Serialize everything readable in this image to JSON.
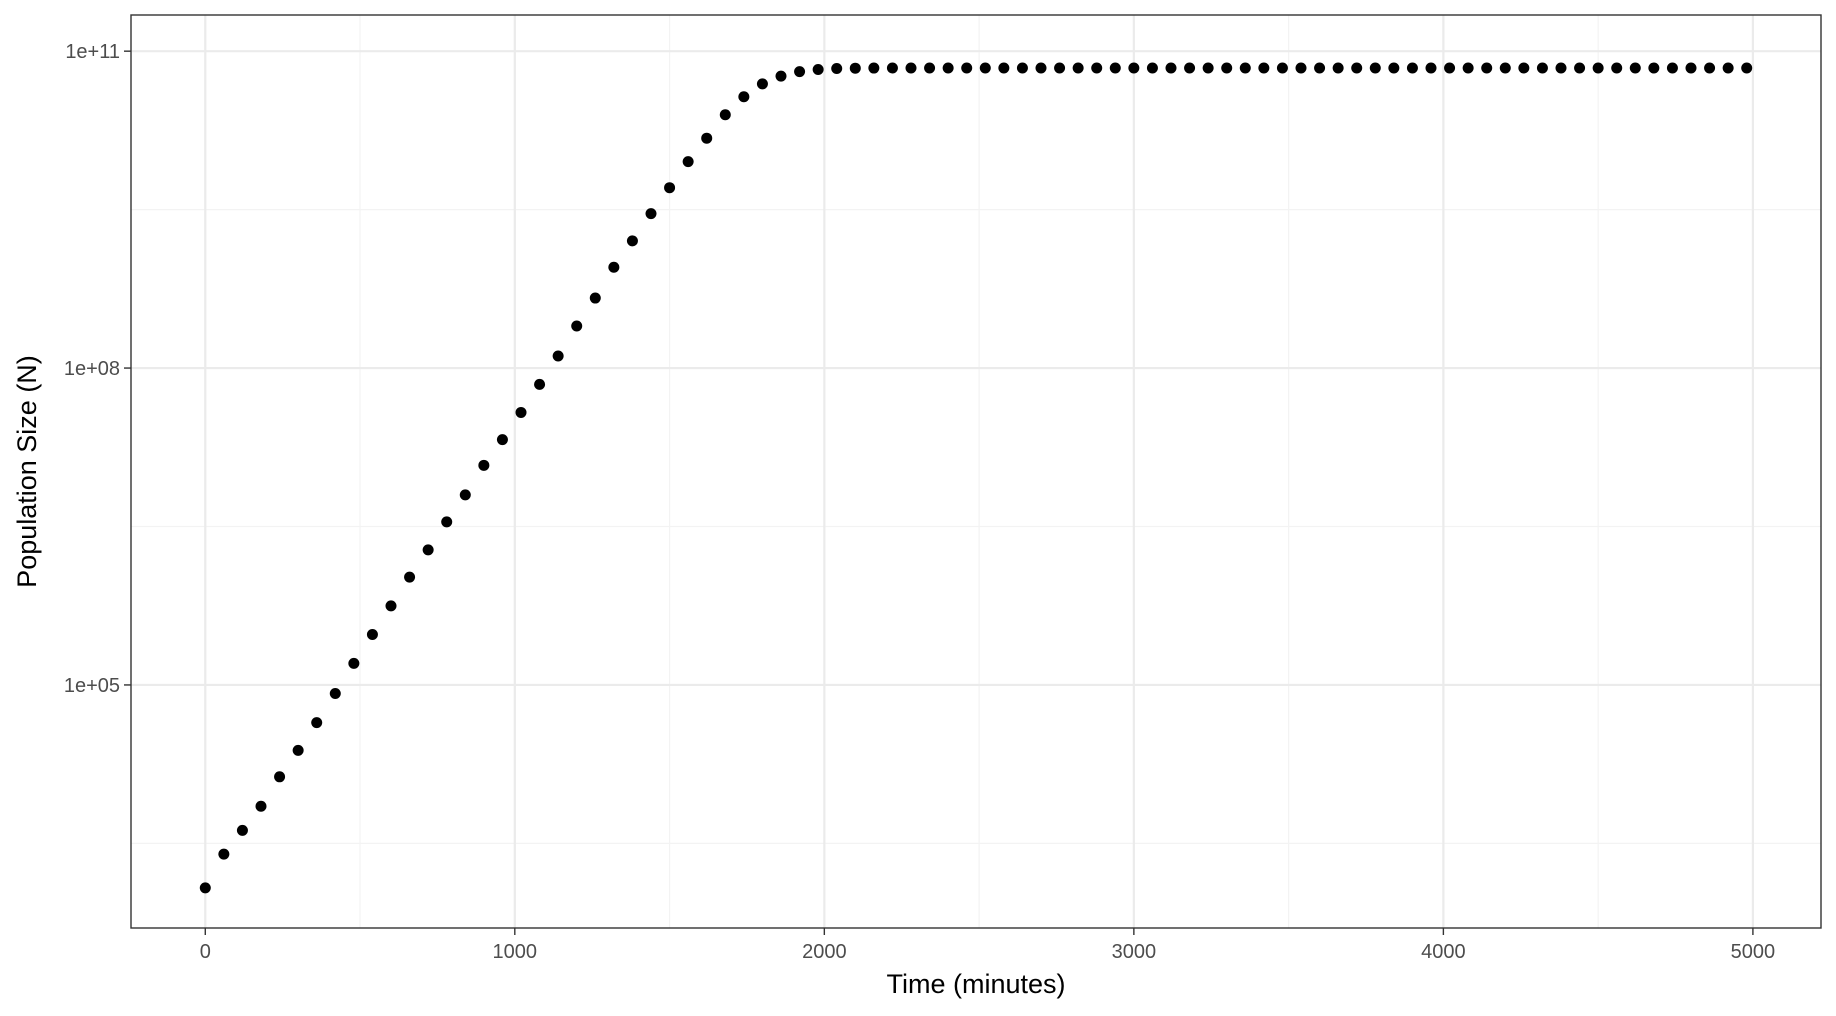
{
  "chart_data": {
    "type": "scatter",
    "title": "",
    "xlabel": "Time (minutes)",
    "ylabel": "Population Size (N)",
    "x_scale": "linear",
    "y_scale": "log10",
    "xlim": [
      -240,
      5220
    ],
    "ylim": [
      500,
      220000000000
    ],
    "x_ticks": [
      0,
      1000,
      2000,
      3000,
      4000,
      5000
    ],
    "x_tick_labels": [
      "0",
      "1000",
      "2000",
      "3000",
      "4000",
      "5000"
    ],
    "y_ticks": [
      100000,
      100000000,
      100000000000
    ],
    "y_tick_labels": [
      "1e+05",
      "1e+08",
      "1e+11"
    ],
    "grid": true,
    "legend": "none",
    "point_color": "#000000",
    "series": [
      {
        "x": [
          0,
          60,
          120,
          180,
          240,
          300,
          360,
          420,
          480,
          540,
          600,
          660,
          720,
          780,
          840,
          900,
          960,
          1020,
          1080,
          1140,
          1200,
          1260,
          1320,
          1380,
          1440,
          1500,
          1560,
          1620,
          1680,
          1740,
          1800,
          1860,
          1920,
          1980,
          2040,
          2100,
          2160,
          2220,
          2280,
          2340,
          2400,
          2460,
          2520,
          2580,
          2640,
          2700,
          2760,
          2820,
          2880,
          2940,
          3000,
          3060,
          3120,
          3180,
          3240,
          3300,
          3360,
          3420,
          3480,
          3540,
          3600,
          3660,
          3720,
          3780,
          3840,
          3900,
          3960,
          4020,
          4080,
          4140,
          4200,
          4260,
          4320,
          4380,
          4440,
          4500,
          4560,
          4620,
          4680,
          4740,
          4800,
          4860,
          4920,
          4980
        ],
        "y": [
          1200,
          2500,
          4200,
          7100,
          13500,
          24000,
          44000,
          83000,
          160000,
          300000,
          560000,
          1050000,
          1900000,
          3500000,
          6300000,
          12000000,
          21000000,
          38000000,
          70000000,
          130000000,
          250000000,
          460000000,
          900000000,
          1600000000,
          2900000000,
          5100000000,
          9000000000,
          15000000000,
          25000000000,
          37000000000,
          49000000000,
          58000000000,
          64000000000,
          67000000000,
          68500000000,
          69000000000,
          69200000000,
          69300000000,
          69300000000,
          69300000000,
          69300000000,
          69300000000,
          69300000000,
          69300000000,
          69300000000,
          69300000000,
          69300000000,
          69300000000,
          69300000000,
          69300000000,
          69300000000,
          69300000000,
          69300000000,
          69300000000,
          69300000000,
          69300000000,
          69300000000,
          69300000000,
          69300000000,
          69300000000,
          69300000000,
          69300000000,
          69300000000,
          69300000000,
          69300000000,
          69300000000,
          69300000000,
          69300000000,
          69300000000,
          69300000000,
          69300000000,
          69300000000,
          69300000000,
          69300000000,
          69300000000,
          69300000000,
          69300000000,
          69300000000,
          69300000000,
          69300000000,
          69300000000,
          69300000000,
          69300000000,
          69300000000
        ]
      }
    ]
  }
}
